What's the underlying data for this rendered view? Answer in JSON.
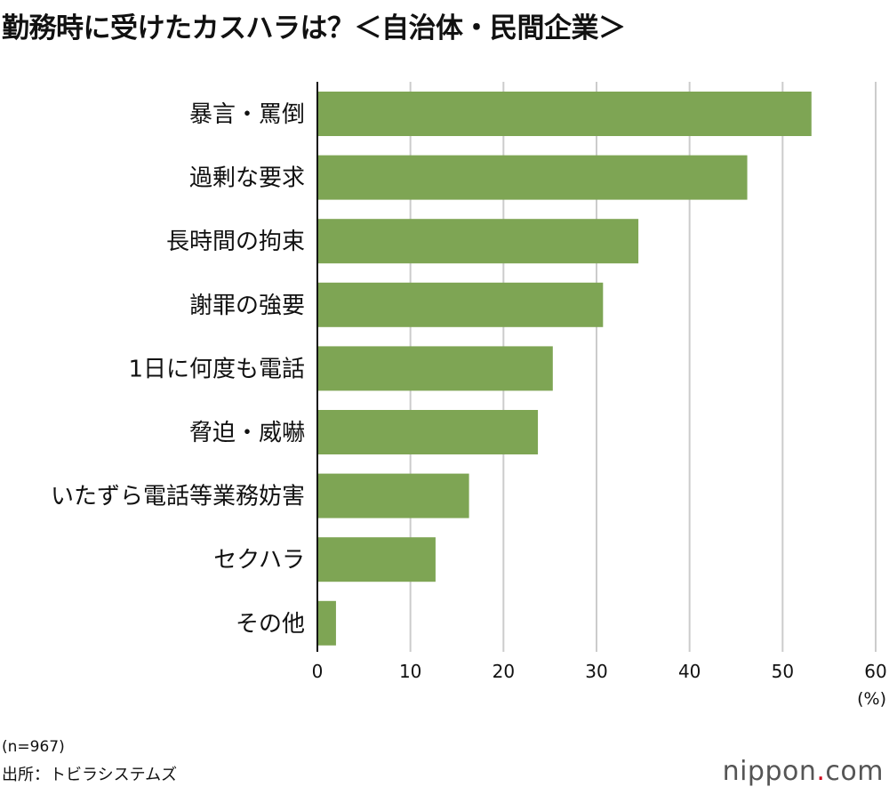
{
  "title": "勤務時に受けたカスハラは？＜自治体・民間企業＞",
  "note_n": "(n=967)",
  "source": "出所：トビラシステムズ",
  "logo": {
    "name": "nippon",
    "dot": ".",
    "suffix": "com"
  },
  "chart_data": {
    "type": "bar",
    "orientation": "horizontal",
    "title": "勤務時に受けたカスハラは？＜自治体・民間企業＞",
    "categories": [
      "暴言・罵倒",
      "過剰な要求",
      "長時間の拘束",
      "謝罪の強要",
      "1日に何度も電話",
      "脅迫・威嚇",
      "いたずら電話等業務妨害",
      "セクハラ",
      "その他"
    ],
    "values": [
      53.1,
      46.2,
      34.5,
      30.7,
      25.3,
      23.7,
      16.3,
      12.7,
      2.0
    ],
    "xlim": [
      0,
      60
    ],
    "xticks": [
      0,
      10,
      20,
      30,
      40,
      50,
      60
    ],
    "xunit": "(%)",
    "grid": true,
    "bar_color": "#7ea554",
    "grid_color": "#cccccc"
  }
}
